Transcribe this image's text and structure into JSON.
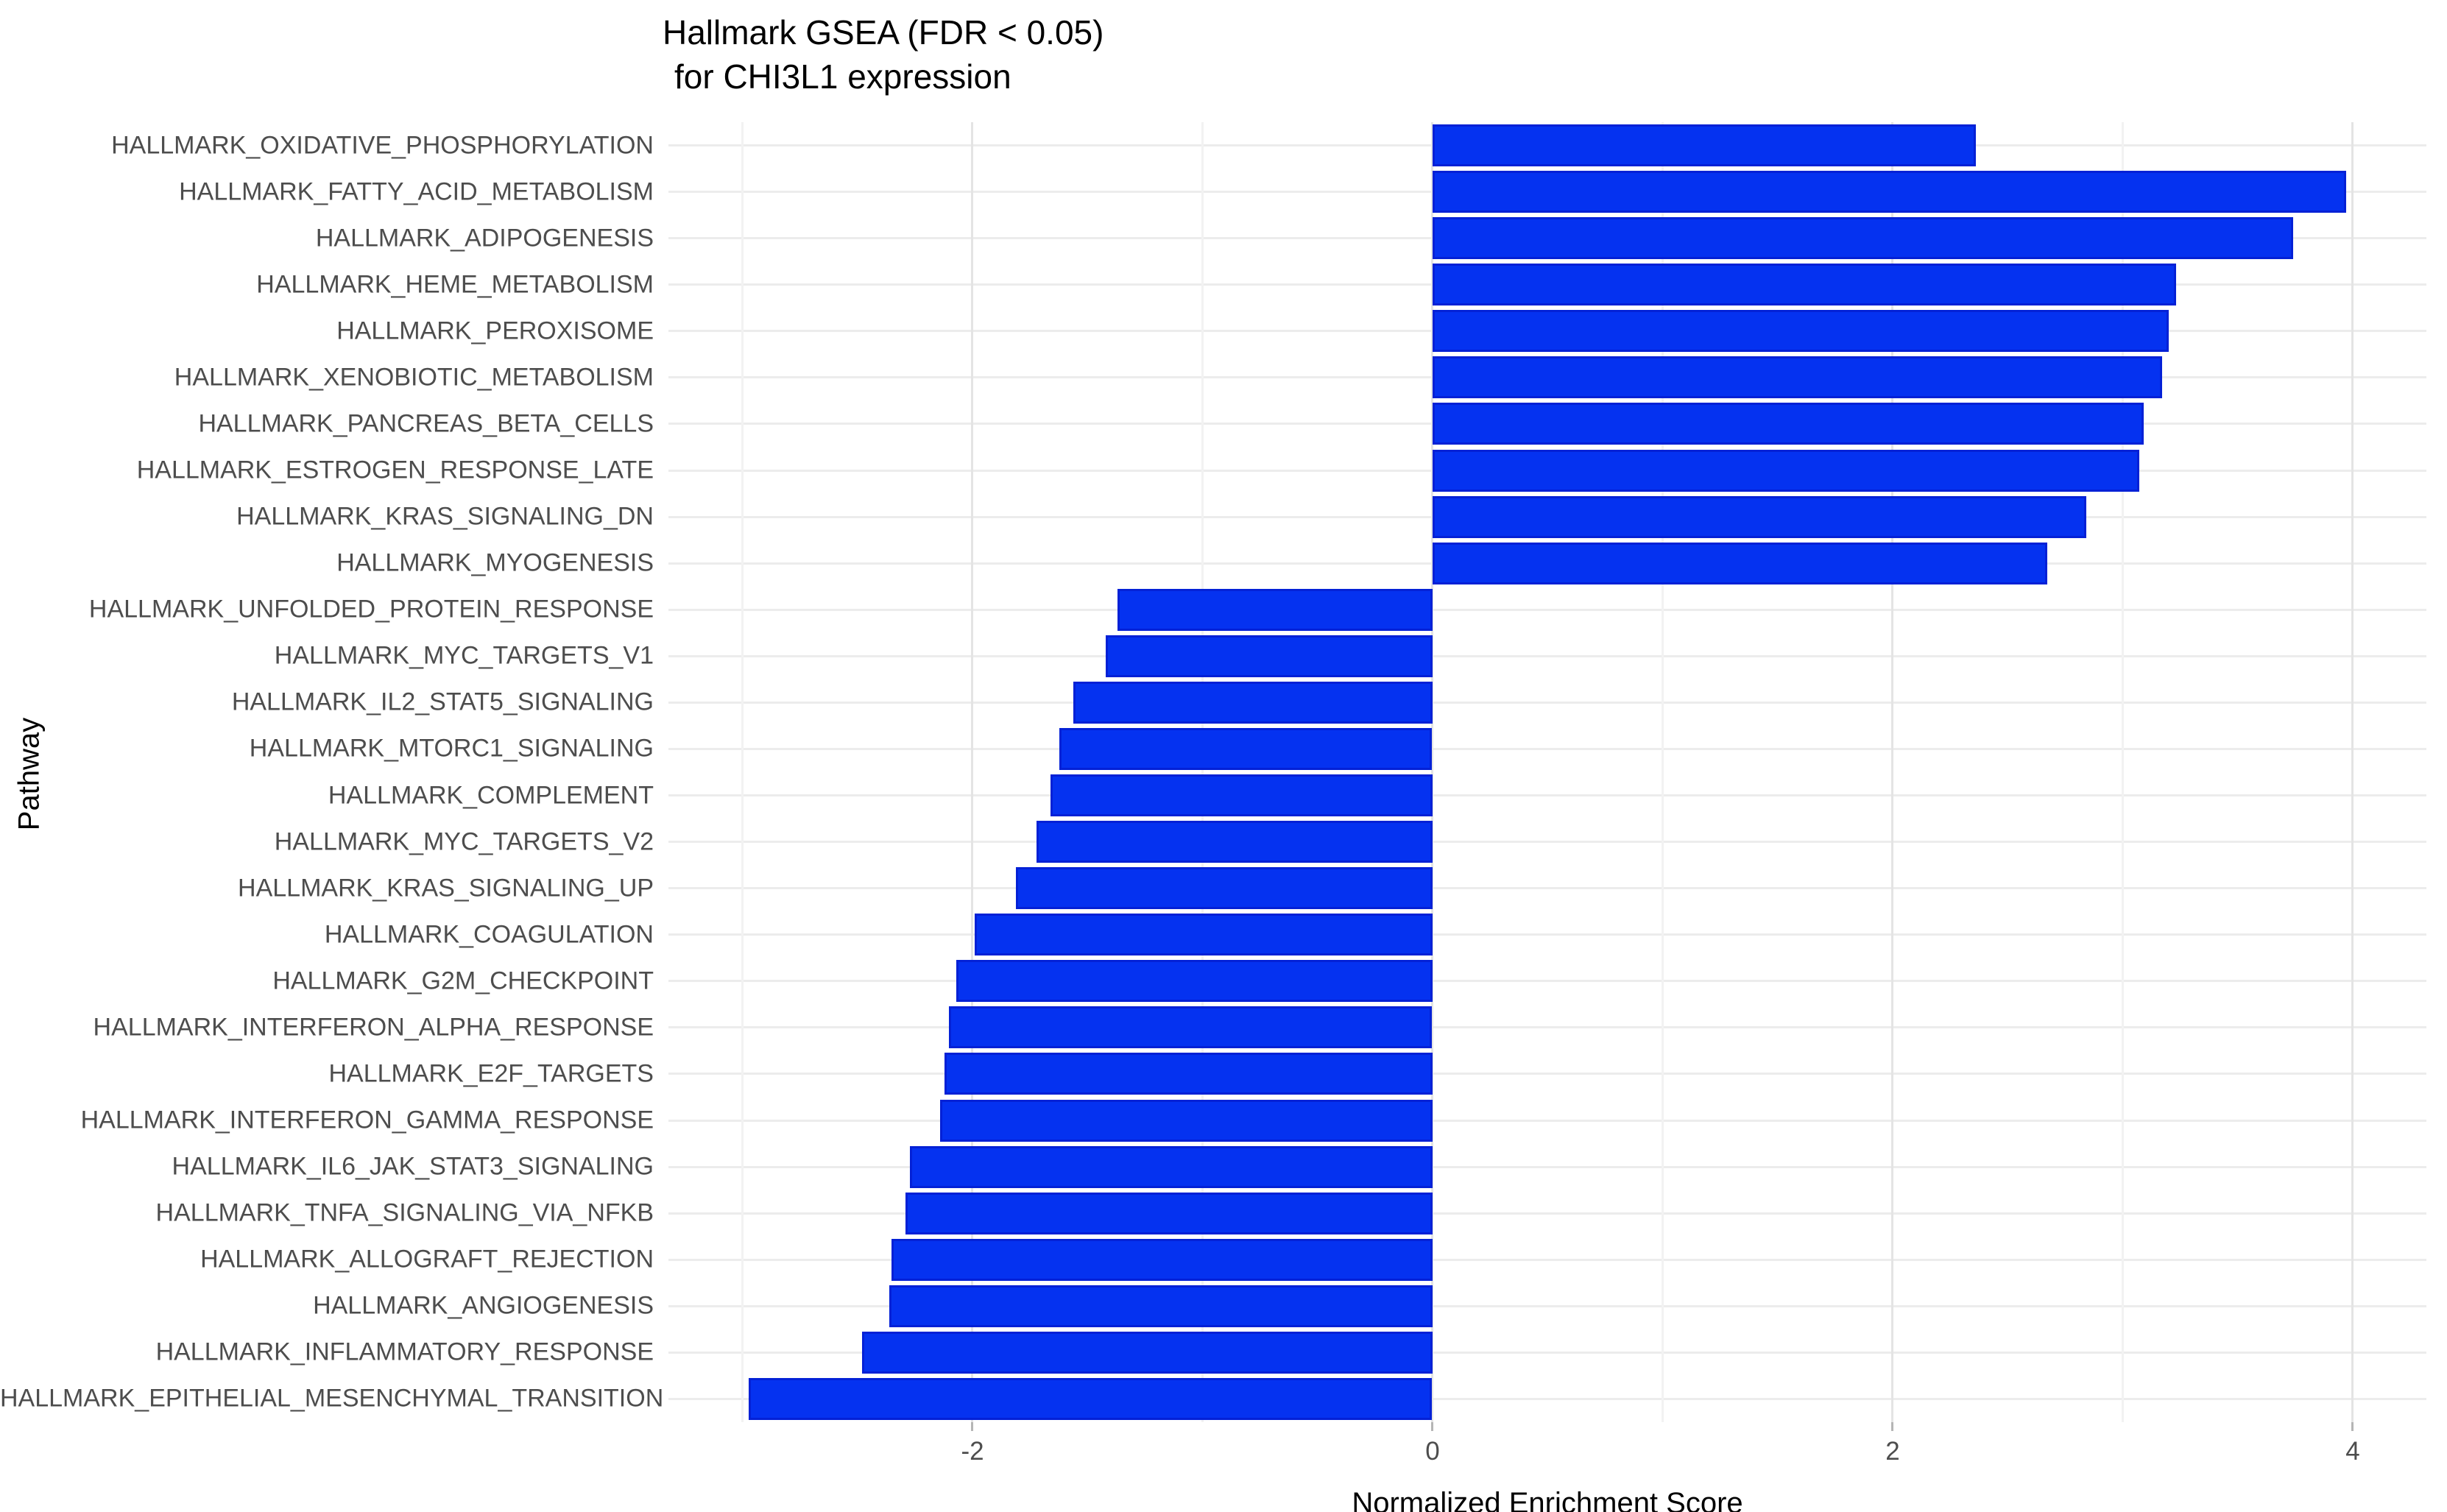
{
  "title": {
    "line1": "Hallmark GSEA (FDR < 0.05)",
    "line2": "for CHI3L1 expression"
  },
  "colors": {
    "bar_fill": "#0532f0",
    "bar_border": "#0421d6",
    "axis_text": "#4d4d4d",
    "grid_major": "#e4e4e4",
    "grid_minor": "#f2f2f2",
    "row_grid": "#ececec"
  },
  "chart_data": {
    "type": "bar",
    "orientation": "horizontal",
    "title": "Hallmark GSEA (FDR < 0.05) for CHI3L1 expression",
    "xlabel": "Normalized Enrichment Score",
    "ylabel": "Pathway",
    "xlim": [
      -3.32,
      4.32
    ],
    "x_ticks": [
      -2,
      0,
      2,
      4
    ],
    "x_tick_labels": [
      "-2",
      "0",
      "2",
      "4"
    ],
    "x_minor_ticks": [
      -3,
      -1,
      1,
      3
    ],
    "grid": true,
    "legend": false,
    "categories": [
      "HALLMARK_OXIDATIVE_PHOSPHORYLATION",
      "HALLMARK_FATTY_ACID_METABOLISM",
      "HALLMARK_ADIPOGENESIS",
      "HALLMARK_HEME_METABOLISM",
      "HALLMARK_PEROXISOME",
      "HALLMARK_XENOBIOTIC_METABOLISM",
      "HALLMARK_PANCREAS_BETA_CELLS",
      "HALLMARK_ESTROGEN_RESPONSE_LATE",
      "HALLMARK_KRAS_SIGNALING_DN",
      "HALLMARK_MYOGENESIS",
      "HALLMARK_UNFOLDED_PROTEIN_RESPONSE",
      "HALLMARK_MYC_TARGETS_V1",
      "HALLMARK_IL2_STAT5_SIGNALING",
      "HALLMARK_MTORC1_SIGNALING",
      "HALLMARK_COMPLEMENT",
      "HALLMARK_MYC_TARGETS_V2",
      "HALLMARK_KRAS_SIGNALING_UP",
      "HALLMARK_COAGULATION",
      "HALLMARK_G2M_CHECKPOINT",
      "HALLMARK_INTERFERON_ALPHA_RESPONSE",
      "HALLMARK_E2F_TARGETS",
      "HALLMARK_INTERFERON_GAMMA_RESPONSE",
      "HALLMARK_IL6_JAK_STAT3_SIGNALING",
      "HALLMARK_TNFA_SIGNALING_VIA_NFKB",
      "HALLMARK_ALLOGRAFT_REJECTION",
      "HALLMARK_ANGIOGENESIS",
      "HALLMARK_INFLAMMATORY_RESPONSE",
      "HALLMARK_EPITHELIAL_MESENCHYMAL_TRANSITION"
    ],
    "values": [
      2.36,
      3.97,
      3.74,
      3.23,
      3.2,
      3.17,
      3.09,
      3.07,
      2.84,
      2.67,
      -1.37,
      -1.42,
      -1.56,
      -1.62,
      -1.66,
      -1.72,
      -1.81,
      -1.99,
      -2.07,
      -2.1,
      -2.12,
      -2.14,
      -2.27,
      -2.29,
      -2.35,
      -2.36,
      -2.48,
      -2.97
    ]
  }
}
